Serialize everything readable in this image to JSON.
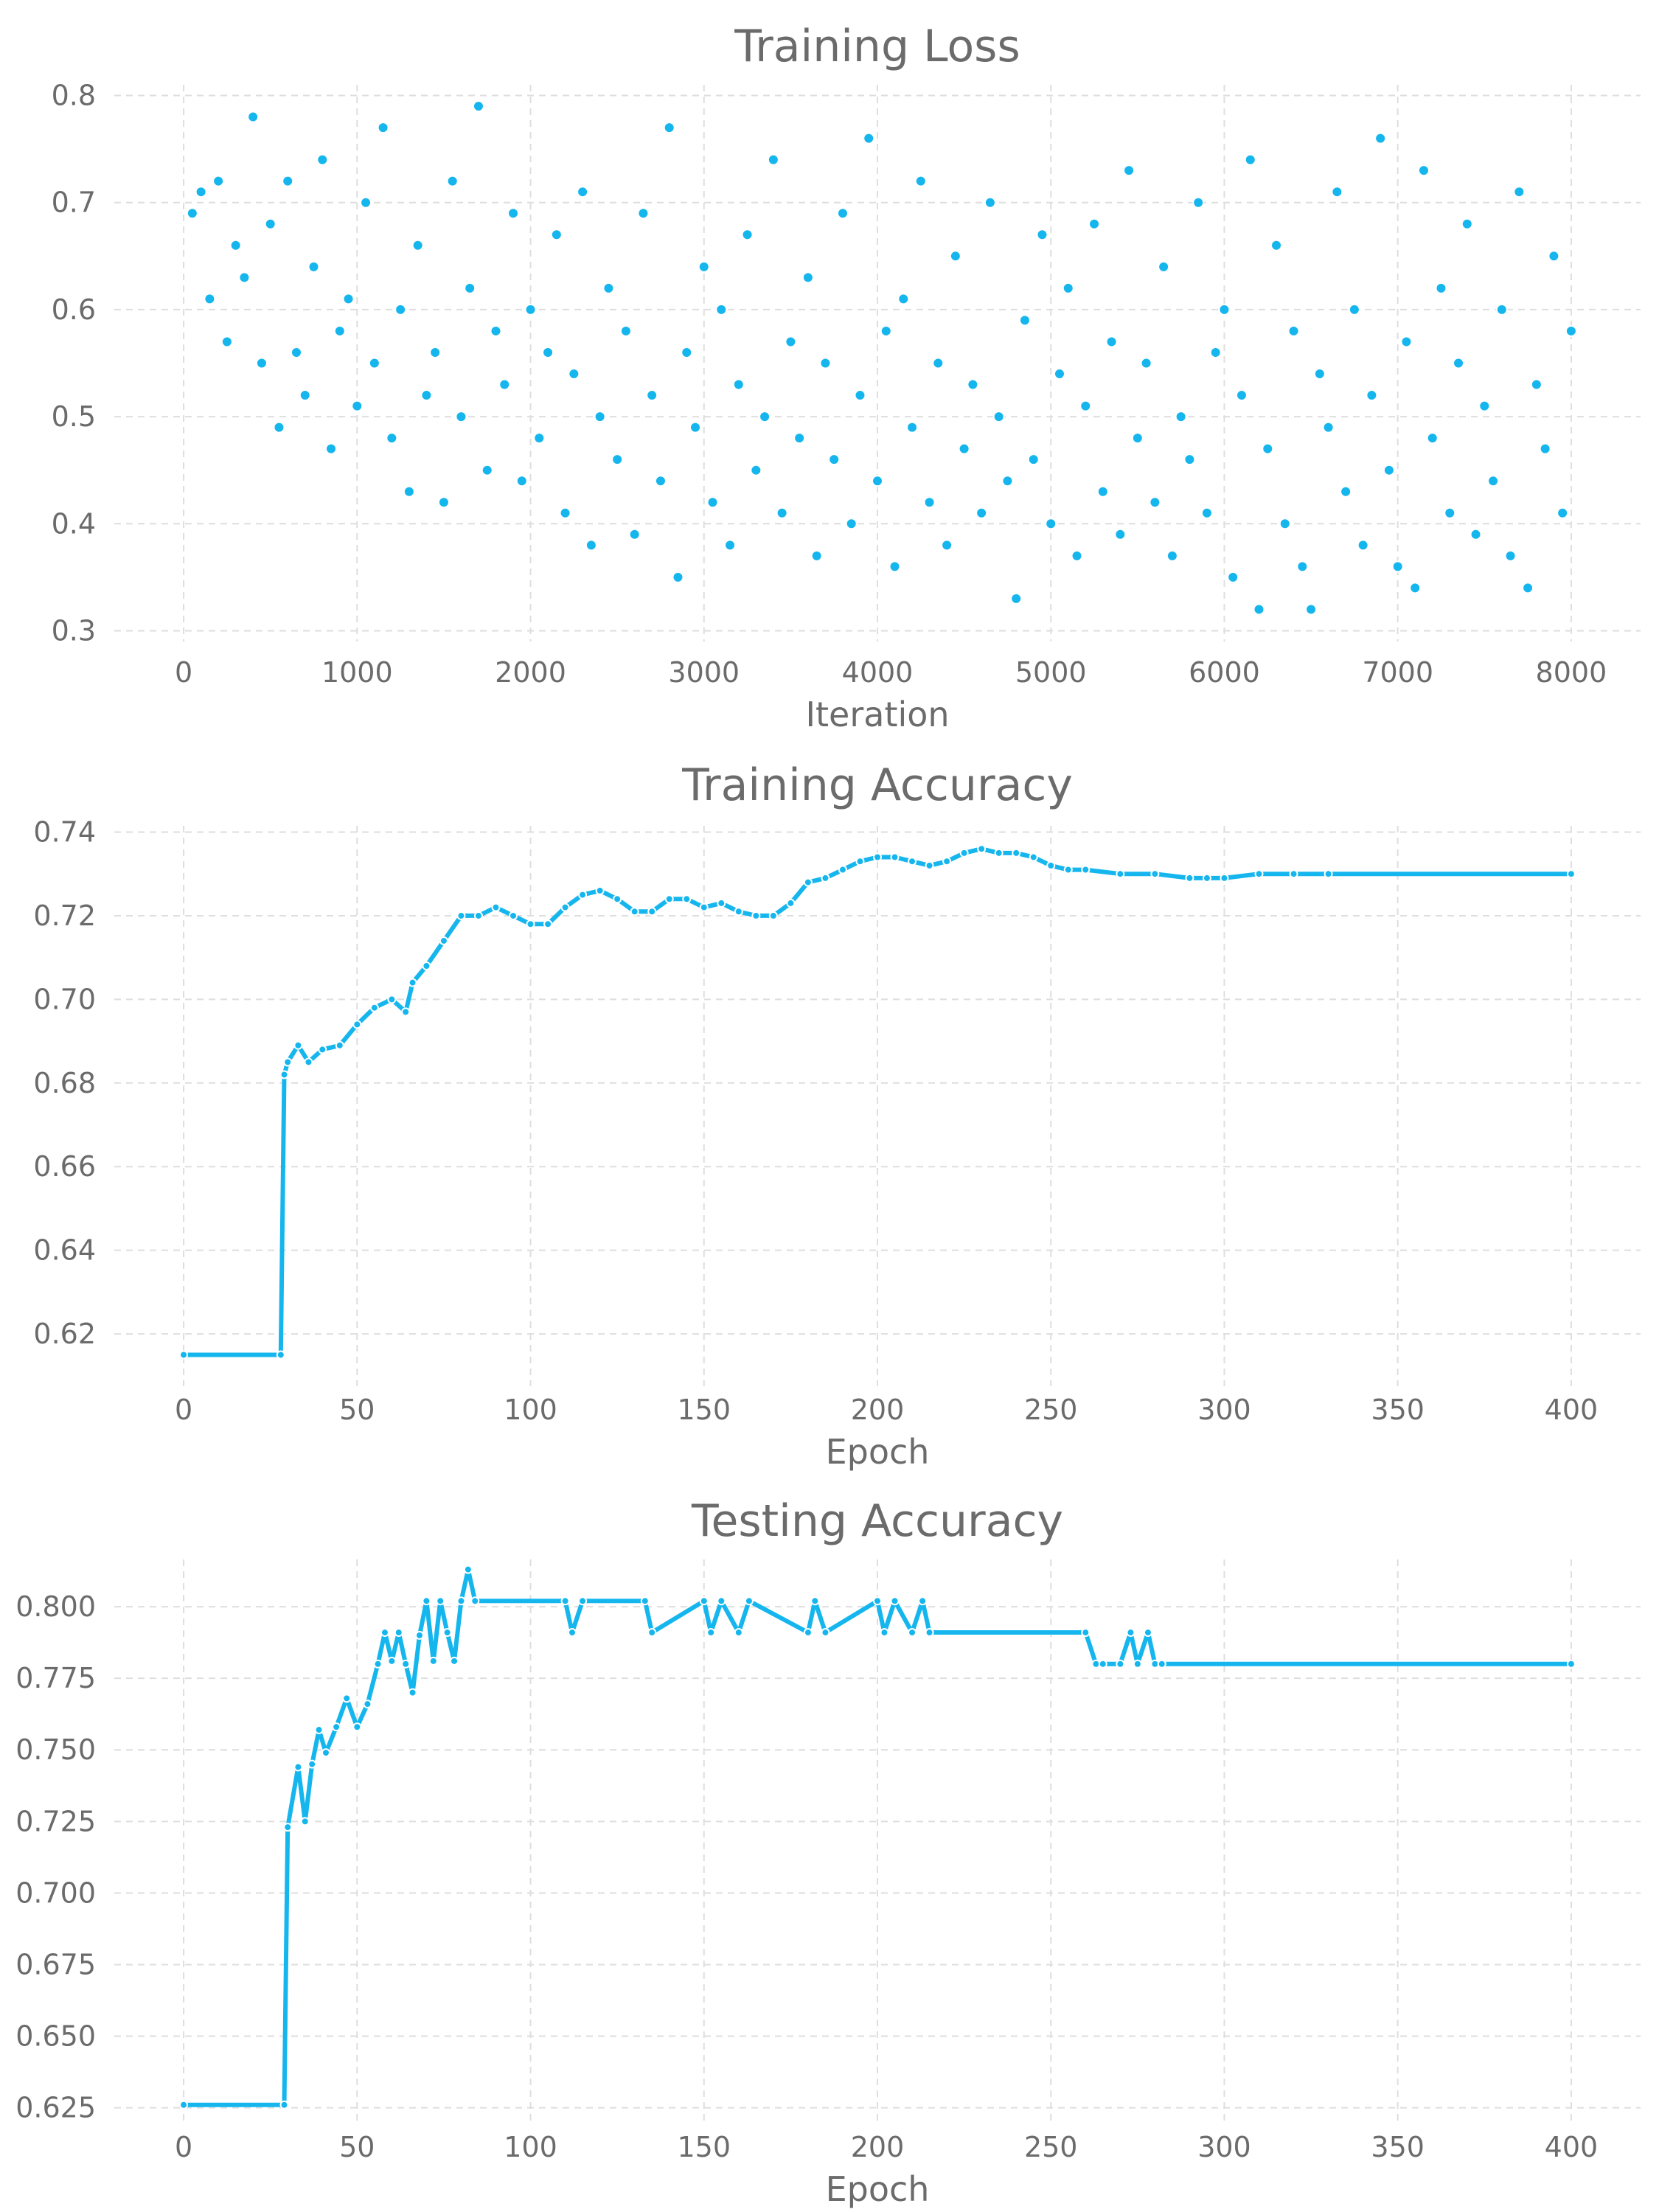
{
  "colors": {
    "series": "#15b6ee",
    "text": "#6b6b6b",
    "grid": "#dedede",
    "background": "#ffffff"
  },
  "chart_data": [
    {
      "type": "scatter",
      "title": "Training Loss",
      "xlabel": "Iteration",
      "ylabel": "",
      "xlim": [
        -400,
        8400
      ],
      "ylim": [
        0.29,
        0.81
      ],
      "xticks": [
        0,
        1000,
        2000,
        3000,
        4000,
        5000,
        6000,
        7000,
        8000
      ],
      "yticks": [
        0.3,
        0.4,
        0.5,
        0.6,
        0.7,
        0.8
      ],
      "xtick_labels": [
        "0",
        "1000",
        "2000",
        "3000",
        "4000",
        "5000",
        "6000",
        "7000",
        "8000"
      ],
      "ytick_labels": [
        "0.3",
        "0.4",
        "0.5",
        "0.6",
        "0.7",
        "0.8"
      ],
      "grid": true,
      "series": [
        {
          "x": [
            50,
            100,
            150,
            200,
            250,
            300,
            350,
            400,
            450,
            500,
            550,
            600,
            650,
            700,
            750,
            800,
            850,
            900,
            950,
            1000,
            1050,
            1100,
            1150,
            1200,
            1250,
            1300,
            1350,
            1400,
            1450,
            1500,
            1550,
            1600,
            1650,
            1700,
            1750,
            1800,
            1850,
            1900,
            1950,
            2000,
            2050,
            2100,
            2150,
            2200,
            2250,
            2300,
            2350,
            2400,
            2450,
            2500,
            2550,
            2600,
            2650,
            2700,
            2750,
            2800,
            2850,
            2900,
            2950,
            3000,
            3050,
            3100,
            3150,
            3200,
            3250,
            3300,
            3350,
            3400,
            3450,
            3500,
            3550,
            3600,
            3650,
            3700,
            3750,
            3800,
            3850,
            3900,
            3950,
            4000,
            4050,
            4100,
            4150,
            4200,
            4250,
            4300,
            4350,
            4400,
            4450,
            4500,
            4550,
            4600,
            4650,
            4700,
            4750,
            4800,
            4850,
            4900,
            4950,
            5000,
            5050,
            5100,
            5150,
            5200,
            5250,
            5300,
            5350,
            5400,
            5450,
            5500,
            5550,
            5600,
            5650,
            5700,
            5750,
            5800,
            5850,
            5900,
            5950,
            6000,
            6050,
            6100,
            6150,
            6200,
            6250,
            6300,
            6350,
            6400,
            6450,
            6500,
            6550,
            6600,
            6650,
            6700,
            6750,
            6800,
            6850,
            6900,
            6950,
            7000,
            7050,
            7100,
            7150,
            7200,
            7250,
            7300,
            7350,
            7400,
            7450,
            7500,
            7550,
            7600,
            7650,
            7700,
            7750,
            7800,
            7850,
            7900,
            7950,
            8000
          ],
          "values": [
            0.69,
            0.71,
            0.61,
            0.72,
            0.57,
            0.66,
            0.63,
            0.78,
            0.55,
            0.68,
            0.49,
            0.72,
            0.56,
            0.52,
            0.64,
            0.74,
            0.47,
            0.58,
            0.61,
            0.51,
            0.7,
            0.55,
            0.77,
            0.48,
            0.6,
            0.43,
            0.66,
            0.52,
            0.56,
            0.42,
            0.72,
            0.5,
            0.62,
            0.79,
            0.45,
            0.58,
            0.53,
            0.69,
            0.44,
            0.6,
            0.48,
            0.56,
            0.67,
            0.41,
            0.54,
            0.71,
            0.38,
            0.5,
            0.62,
            0.46,
            0.58,
            0.39,
            0.69,
            0.52,
            0.44,
            0.77,
            0.35,
            0.56,
            0.49,
            0.64,
            0.42,
            0.6,
            0.38,
            0.53,
            0.67,
            0.45,
            0.5,
            0.74,
            0.41,
            0.57,
            0.48,
            0.63,
            0.37,
            0.55,
            0.46,
            0.69,
            0.4,
            0.52,
            0.76,
            0.44,
            0.58,
            0.36,
            0.61,
            0.49,
            0.72,
            0.42,
            0.55,
            0.38,
            0.65,
            0.47,
            0.53,
            0.41,
            0.7,
            0.5,
            0.44,
            0.33,
            0.59,
            0.46,
            0.67,
            0.4,
            0.54,
            0.62,
            0.37,
            0.51,
            0.68,
            0.43,
            0.57,
            0.39,
            0.73,
            0.48,
            0.55,
            0.42,
            0.64,
            0.37,
            0.5,
            0.46,
            0.7,
            0.41,
            0.56,
            0.6,
            0.35,
            0.52,
            0.74,
            0.32,
            0.47,
            0.66,
            0.4,
            0.58,
            0.36,
            0.32,
            0.54,
            0.49,
            0.71,
            0.43,
            0.6,
            0.38,
            0.52,
            0.76,
            0.45,
            0.36,
            0.57,
            0.34,
            0.73,
            0.48,
            0.62,
            0.41,
            0.55,
            0.68,
            0.39,
            0.51,
            0.44,
            0.6,
            0.37,
            0.71,
            0.34,
            0.53,
            0.47,
            0.65,
            0.41,
            0.58
          ]
        }
      ]
    },
    {
      "type": "line",
      "title": "Training Accuracy",
      "xlabel": "Epoch",
      "ylabel": "",
      "xlim": [
        -20,
        420
      ],
      "ylim": [
        0.6075,
        0.7415
      ],
      "xticks": [
        0,
        50,
        100,
        150,
        200,
        250,
        300,
        350,
        400
      ],
      "yticks": [
        0.62,
        0.64,
        0.66,
        0.68,
        0.7,
        0.72,
        0.74
      ],
      "xtick_labels": [
        "0",
        "50",
        "100",
        "150",
        "200",
        "250",
        "300",
        "350",
        "400"
      ],
      "ytick_labels": [
        "0.62",
        "0.64",
        "0.66",
        "0.68",
        "0.70",
        "0.72",
        "0.74"
      ],
      "grid": true,
      "markers": true,
      "series": [
        {
          "x": [
            0,
            28,
            29,
            30,
            33,
            36,
            40,
            45,
            50,
            55,
            60,
            64,
            66,
            70,
            75,
            80,
            85,
            90,
            95,
            100,
            105,
            110,
            115,
            120,
            125,
            130,
            135,
            140,
            145,
            150,
            155,
            160,
            165,
            170,
            175,
            180,
            185,
            190,
            195,
            200,
            205,
            210,
            215,
            220,
            225,
            230,
            235,
            240,
            245,
            250,
            255,
            260,
            270,
            280,
            290,
            295,
            300,
            310,
            320,
            330,
            400
          ],
          "values": [
            0.615,
            0.615,
            0.682,
            0.685,
            0.689,
            0.685,
            0.688,
            0.689,
            0.694,
            0.698,
            0.7,
            0.697,
            0.704,
            0.708,
            0.714,
            0.72,
            0.72,
            0.722,
            0.72,
            0.718,
            0.718,
            0.722,
            0.725,
            0.726,
            0.724,
            0.721,
            0.721,
            0.724,
            0.724,
            0.722,
            0.723,
            0.721,
            0.72,
            0.72,
            0.723,
            0.728,
            0.729,
            0.731,
            0.733,
            0.734,
            0.734,
            0.733,
            0.732,
            0.733,
            0.735,
            0.736,
            0.735,
            0.735,
            0.734,
            0.732,
            0.731,
            0.731,
            0.73,
            0.73,
            0.729,
            0.729,
            0.729,
            0.73,
            0.73,
            0.73,
            0.73
          ]
        }
      ]
    },
    {
      "type": "line",
      "title": "Testing Accuracy",
      "xlabel": "Epoch",
      "ylabel": "",
      "xlim": [
        -20,
        420
      ],
      "ylim": [
        0.6195,
        0.8165
      ],
      "xticks": [
        0,
        50,
        100,
        150,
        200,
        250,
        300,
        350,
        400
      ],
      "yticks": [
        0.625,
        0.65,
        0.675,
        0.7,
        0.725,
        0.75,
        0.775,
        0.8
      ],
      "xtick_labels": [
        "0",
        "50",
        "100",
        "150",
        "200",
        "250",
        "300",
        "350",
        "400"
      ],
      "ytick_labels": [
        "0.625",
        "0.650",
        "0.675",
        "0.700",
        "0.725",
        "0.750",
        "0.775",
        "0.800"
      ],
      "grid": true,
      "markers": true,
      "series": [
        {
          "x": [
            0,
            29,
            30,
            33,
            35,
            37,
            39,
            41,
            44,
            47,
            50,
            53,
            56,
            58,
            60,
            62,
            64,
            66,
            68,
            70,
            72,
            74,
            76,
            78,
            80,
            82,
            84,
            110,
            112,
            115,
            133,
            135,
            150,
            152,
            155,
            160,
            163,
            180,
            182,
            185,
            200,
            202,
            205,
            210,
            213,
            215,
            260,
            263,
            265,
            270,
            273,
            275,
            278,
            280,
            282,
            400
          ],
          "values": [
            0.626,
            0.626,
            0.723,
            0.744,
            0.725,
            0.745,
            0.757,
            0.749,
            0.758,
            0.768,
            0.758,
            0.766,
            0.78,
            0.791,
            0.781,
            0.791,
            0.78,
            0.77,
            0.79,
            0.802,
            0.781,
            0.802,
            0.791,
            0.781,
            0.802,
            0.813,
            0.802,
            0.802,
            0.791,
            0.802,
            0.802,
            0.791,
            0.802,
            0.791,
            0.802,
            0.791,
            0.802,
            0.791,
            0.802,
            0.791,
            0.802,
            0.791,
            0.802,
            0.791,
            0.802,
            0.791,
            0.791,
            0.78,
            0.78,
            0.78,
            0.791,
            0.78,
            0.791,
            0.78,
            0.78,
            0.78
          ]
        }
      ]
    }
  ]
}
